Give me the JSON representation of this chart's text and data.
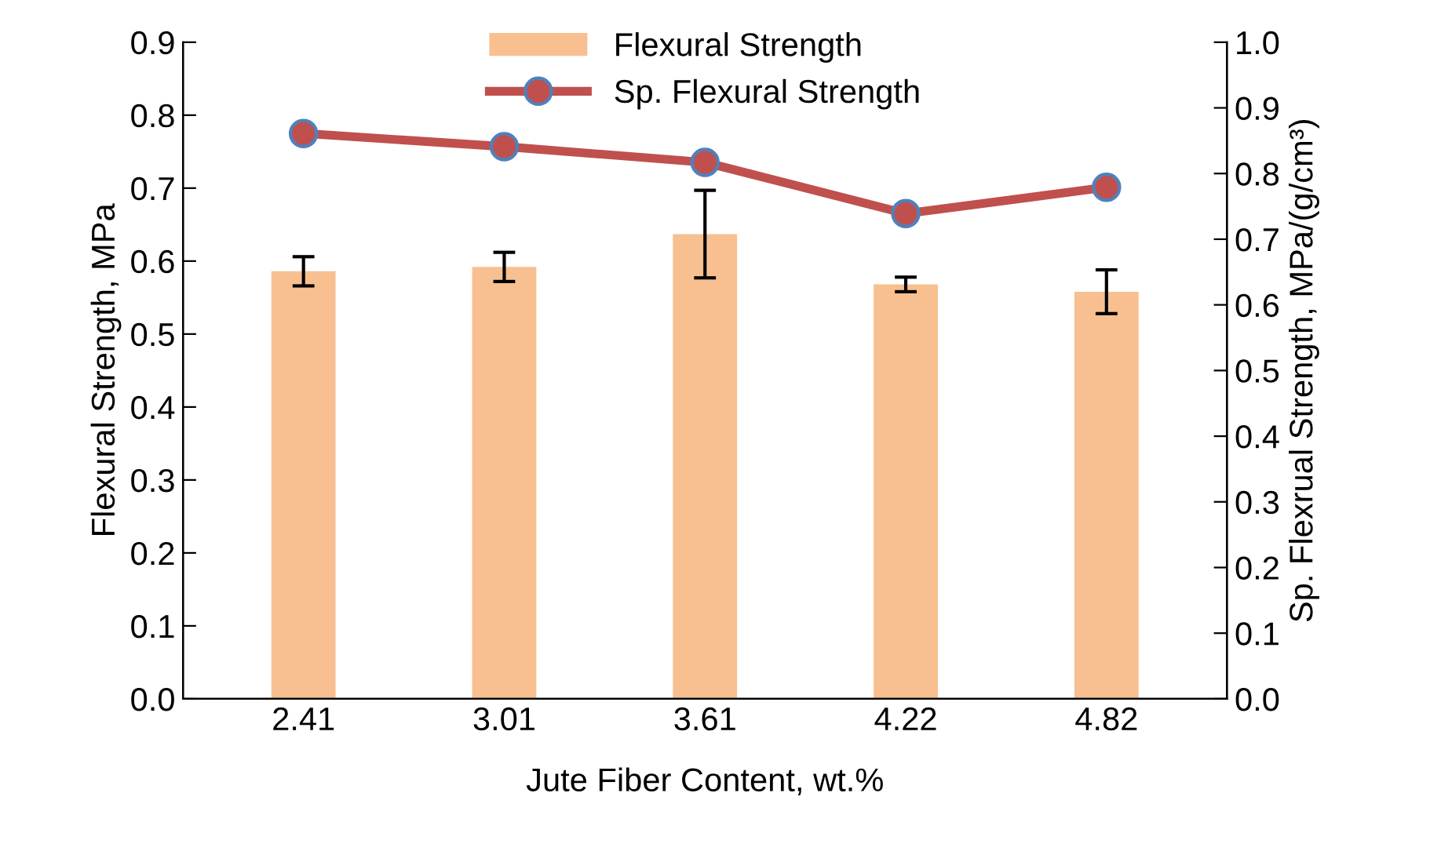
{
  "chart_data": {
    "type": "bar",
    "xlabel": "Jute Fiber Content, wt.%",
    "ylabel": "Flexural Strength, MPa",
    "y2label": "Sp. Flexrual Strength, MPa/(g/cm³)",
    "categories": [
      "2.41",
      "3.01",
      "3.61",
      "4.22",
      "4.82"
    ],
    "series": [
      {
        "name": "Flexural Strength",
        "color": "#f8c090",
        "values": [
          0.586,
          0.592,
          0.637,
          0.568,
          0.558
        ],
        "errors": [
          0.02,
          0.02,
          0.06,
          0.01,
          0.03
        ]
      },
      {
        "name": "Sp. Flexural Strength",
        "type": "line",
        "axis": "y2",
        "color": "#c0504d",
        "values": [
          0.861,
          0.841,
          0.817,
          0.739,
          0.779
        ],
        "marker": "circle"
      }
    ],
    "ylim": [
      0,
      0.9
    ],
    "yticks": [
      {
        "value": 0,
        "label": "0.0"
      },
      0.1,
      0.2,
      0.3,
      0.4,
      0.5,
      0.6,
      0.7,
      0.8,
      0.9
    ],
    "y2lim": [
      0,
      1.0
    ],
    "y2ticks": [
      {
        "value": 0,
        "label": "0.0"
      },
      0.1,
      0.2,
      0.3,
      0.4,
      0.5,
      0.6,
      0.7,
      0.8,
      0.9,
      {
        "value": 1.0,
        "label": "1.0"
      }
    ],
    "legend": "top",
    "grid": false
  }
}
